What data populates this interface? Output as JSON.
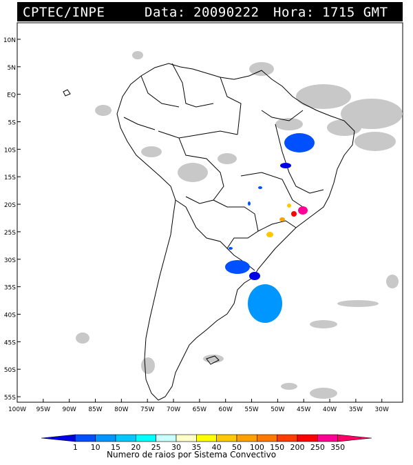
{
  "header": {
    "source": "CPTEC/INPE",
    "data_label": "Data:",
    "date": "20090222",
    "hora_label": "Hora:",
    "time": "1715 GMT"
  },
  "map": {
    "lat_labels": [
      "10N",
      "5N",
      "EQ",
      "5S",
      "10S",
      "15S",
      "20S",
      "25S",
      "30S",
      "35S",
      "40S",
      "45S",
      "50S",
      "55S"
    ],
    "lat_values": [
      10,
      5,
      0,
      -5,
      -10,
      -15,
      -20,
      -25,
      -30,
      -35,
      -40,
      -45,
      -50,
      -55
    ],
    "lon_labels": [
      "100W",
      "95W",
      "90W",
      "85W",
      "80W",
      "75W",
      "70W",
      "65W",
      "60W",
      "55W",
      "50W",
      "45W",
      "40W",
      "35W",
      "30W"
    ],
    "lon_values": [
      -100,
      -95,
      -90,
      -85,
      -80,
      -75,
      -70,
      -65,
      -60,
      -55,
      -50,
      -45,
      -40,
      -35,
      -30
    ],
    "lon_range": [
      -100,
      -26
    ],
    "lat_range": [
      -56,
      13
    ],
    "cloud_color": "#c8c8c8",
    "coast_color": "#000000"
  },
  "legend": {
    "values": [
      "1",
      "10",
      "15",
      "20",
      "25",
      "30",
      "35",
      "40",
      "50",
      "100",
      "150",
      "200",
      "250",
      "350"
    ],
    "colors": [
      "#0000e6",
      "#0050ff",
      "#0096ff",
      "#00c8ff",
      "#00ffff",
      "#c8ffff",
      "#ffffc8",
      "#ffff00",
      "#ffc800",
      "#ffa000",
      "#ff7800",
      "#ff3c00",
      "#ff0000",
      "#ff0096",
      "#ff0064"
    ],
    "caption": "Numero de raios por Sistema Convectivo"
  }
}
